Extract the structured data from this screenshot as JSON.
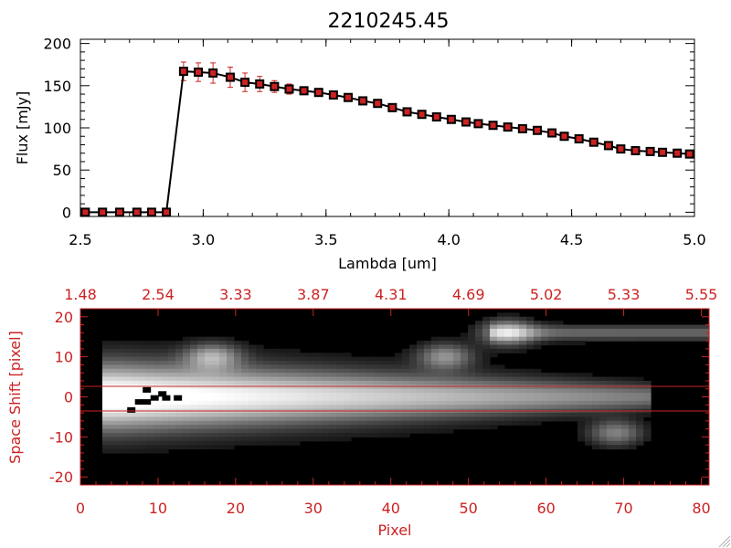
{
  "chart_data": [
    {
      "type": "line",
      "title": "2210245.45",
      "xlabel": "Lambda [um]",
      "ylabel": "Flux [mJy]",
      "xlim": [
        2.5,
        5.0
      ],
      "ylim": [
        -5,
        205
      ],
      "x_ticks": [
        "2.5",
        "3.0",
        "3.5",
        "4.0",
        "4.5",
        "5.0"
      ],
      "y_ticks": [
        "0",
        "50",
        "100",
        "150",
        "200"
      ],
      "colors": {
        "line": "#000000",
        "marker": "#000000",
        "marker_fill": "#cc2222",
        "errorbar": "#cc2222"
      },
      "series": [
        {
          "name": "Flux",
          "x": [
            2.52,
            2.59,
            2.66,
            2.73,
            2.79,
            2.85,
            2.92,
            2.98,
            3.04,
            3.11,
            3.17,
            3.23,
            3.29,
            3.35,
            3.41,
            3.47,
            3.53,
            3.59,
            3.65,
            3.71,
            3.77,
            3.83,
            3.89,
            3.95,
            4.01,
            4.07,
            4.12,
            4.18,
            4.24,
            4.3,
            4.36,
            4.42,
            4.47,
            4.53,
            4.59,
            4.65,
            4.7,
            4.76,
            4.82,
            4.87,
            4.93,
            4.98
          ],
          "y": [
            0,
            0,
            0,
            0,
            0,
            0,
            167,
            166,
            165,
            160,
            154,
            152,
            149,
            146,
            144,
            142,
            139,
            136,
            132,
            129,
            124,
            119,
            116,
            113,
            110,
            107,
            105,
            103,
            101,
            99,
            97,
            94,
            90,
            87,
            83,
            79,
            75,
            73,
            72,
            71,
            70,
            69
          ],
          "yerr": [
            0,
            0,
            0,
            0,
            0,
            0,
            11,
            11,
            12,
            12,
            11,
            9,
            7,
            6,
            4,
            3,
            3,
            3,
            3,
            3,
            3,
            3,
            3,
            3,
            3,
            3,
            3,
            3,
            3,
            3,
            3,
            3,
            3,
            3,
            3,
            3,
            3,
            3,
            3,
            3,
            3,
            3
          ]
        }
      ]
    },
    {
      "type": "heatmap",
      "xlabel": "Pixel",
      "ylabel": "Space Shift [pixel]",
      "xlim": [
        0,
        81
      ],
      "ylim": [
        -22,
        22
      ],
      "x_ticks": [
        "0",
        "10",
        "20",
        "30",
        "40",
        "50",
        "60",
        "70",
        "80"
      ],
      "top_tick_values": [
        0,
        10,
        20,
        30,
        40,
        50,
        60,
        70,
        80
      ],
      "top_ticks": [
        "1.48",
        "2.54",
        "3.33",
        "3.87",
        "4.31",
        "4.69",
        "5.02",
        "5.33",
        "5.55"
      ],
      "y_ticks": [
        "20",
        "10",
        "0",
        "-10",
        "-20"
      ],
      "extraction_window": [
        3,
        -3
      ],
      "colors": {
        "axes": "#cc2222",
        "background": "#000000"
      },
      "features": [
        {
          "name": "main trace",
          "x_start": 5,
          "x_end": 73,
          "y": 0,
          "peak": 0.95
        },
        {
          "name": "blob",
          "x": 17,
          "y": 10,
          "peak": 0.55
        },
        {
          "name": "blob",
          "x": 47,
          "y": 10,
          "peak": 0.5
        },
        {
          "name": "blob",
          "x": 55,
          "y": 16,
          "peak": 0.6
        },
        {
          "name": "streak",
          "x_start": 55,
          "x_end": 81,
          "y": 16,
          "peak": 0.35
        },
        {
          "name": "blob",
          "x": 69,
          "y": -9,
          "peak": 0.45
        }
      ]
    }
  ]
}
